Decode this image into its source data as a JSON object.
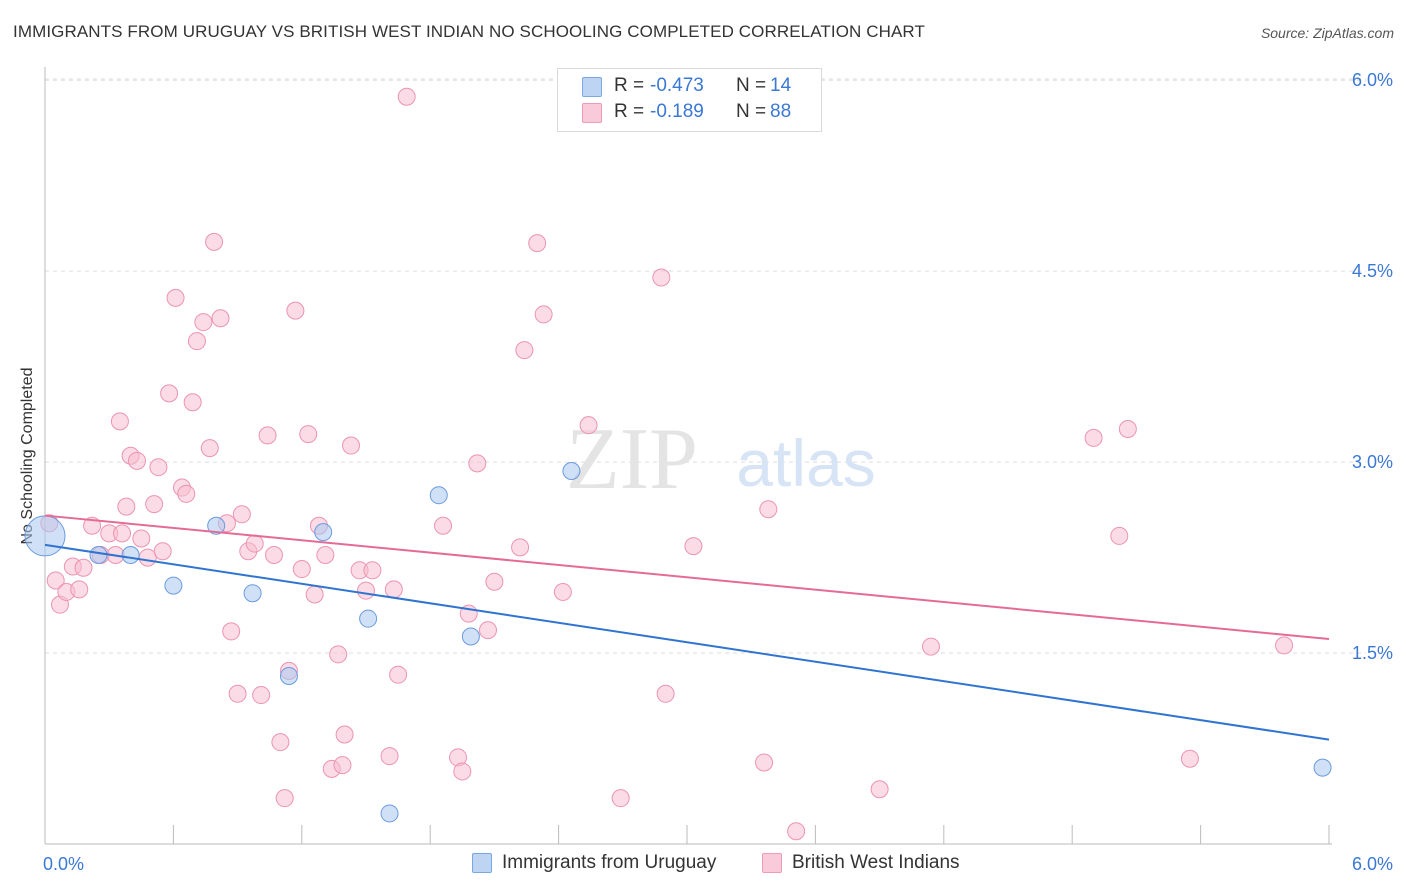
{
  "chart_data": {
    "type": "scatter",
    "title": "IMMIGRANTS FROM URUGUAY VS BRITISH WEST INDIAN NO SCHOOLING COMPLETED CORRELATION CHART",
    "source": "Source: ZipAtlas.com",
    "ylabel": "No Schooling Completed",
    "xlabel": "",
    "xlim": [
      0,
      6
    ],
    "ylim": [
      0,
      6.3
    ],
    "x_tick_labels": [
      "0.0%",
      "6.0%"
    ],
    "y_ticks": [
      {
        "value": 1.5,
        "label": "1.5%"
      },
      {
        "value": 3.0,
        "label": "3.0%"
      },
      {
        "value": 4.5,
        "label": "4.5%"
      },
      {
        "value": 6.0,
        "label": "6.0%"
      }
    ],
    "grid": true,
    "watermark": {
      "zip": "ZIP",
      "atlas": "atlas"
    },
    "legend": [
      {
        "r_label": "R =",
        "r_value": "-0.473",
        "n_label": "N =",
        "n_value": "14"
      },
      {
        "r_label": "R =",
        "r_value": "-0.189",
        "n_label": "N =",
        "n_value": "88"
      }
    ],
    "colors": {
      "series1_fill": "#aac8f0",
      "series1_stroke": "#6a9be0",
      "series1_line": "#2f74d0",
      "series2_fill": "#f7bed0",
      "series2_stroke": "#ec94b1",
      "series2_line": "#e56b97",
      "tick_label": "#3a78d4",
      "grid": "#dddddd"
    },
    "series": [
      {
        "name": "Immigrants from Uruguay",
        "trend": {
          "x": [
            0,
            6
          ],
          "y": [
            2.35,
            0.82
          ]
        },
        "points": [
          {
            "x": 0.0,
            "y": 2.42,
            "big": true
          },
          {
            "x": 0.25,
            "y": 2.27
          },
          {
            "x": 0.4,
            "y": 2.27
          },
          {
            "x": 0.6,
            "y": 2.03
          },
          {
            "x": 0.8,
            "y": 2.5
          },
          {
            "x": 0.97,
            "y": 1.97
          },
          {
            "x": 1.14,
            "y": 1.32
          },
          {
            "x": 1.3,
            "y": 2.45
          },
          {
            "x": 1.51,
            "y": 1.77
          },
          {
            "x": 1.61,
            "y": 0.24
          },
          {
            "x": 1.84,
            "y": 2.74
          },
          {
            "x": 1.99,
            "y": 1.63
          },
          {
            "x": 2.46,
            "y": 2.93
          },
          {
            "x": 5.97,
            "y": 0.6
          }
        ]
      },
      {
        "name": "British West Indians",
        "trend": {
          "x": [
            0,
            6
          ],
          "y": [
            2.58,
            1.61
          ]
        },
        "points": [
          {
            "x": 0.02,
            "y": 2.52
          },
          {
            "x": 0.05,
            "y": 2.07
          },
          {
            "x": 0.07,
            "y": 1.88
          },
          {
            "x": 0.1,
            "y": 1.98
          },
          {
            "x": 0.13,
            "y": 2.18
          },
          {
            "x": 0.16,
            "y": 2.0
          },
          {
            "x": 0.18,
            "y": 2.17
          },
          {
            "x": 0.22,
            "y": 2.5
          },
          {
            "x": 0.26,
            "y": 2.27
          },
          {
            "x": 0.3,
            "y": 2.44
          },
          {
            "x": 0.33,
            "y": 2.27
          },
          {
            "x": 0.36,
            "y": 2.44
          },
          {
            "x": 0.35,
            "y": 3.32
          },
          {
            "x": 0.38,
            "y": 2.65
          },
          {
            "x": 0.4,
            "y": 3.05
          },
          {
            "x": 0.43,
            "y": 3.01
          },
          {
            "x": 0.45,
            "y": 2.4
          },
          {
            "x": 0.48,
            "y": 2.25
          },
          {
            "x": 0.51,
            "y": 2.67
          },
          {
            "x": 0.53,
            "y": 2.96
          },
          {
            "x": 0.55,
            "y": 2.3
          },
          {
            "x": 0.58,
            "y": 3.54
          },
          {
            "x": 0.61,
            "y": 4.29
          },
          {
            "x": 0.64,
            "y": 2.8
          },
          {
            "x": 0.66,
            "y": 2.75
          },
          {
            "x": 0.69,
            "y": 3.47
          },
          {
            "x": 0.71,
            "y": 3.95
          },
          {
            "x": 0.74,
            "y": 4.1
          },
          {
            "x": 0.77,
            "y": 3.11
          },
          {
            "x": 0.79,
            "y": 4.73
          },
          {
            "x": 0.82,
            "y": 4.13
          },
          {
            "x": 0.85,
            "y": 2.52
          },
          {
            "x": 0.87,
            "y": 1.67
          },
          {
            "x": 0.9,
            "y": 1.18
          },
          {
            "x": 0.92,
            "y": 2.59
          },
          {
            "x": 0.95,
            "y": 2.3
          },
          {
            "x": 0.98,
            "y": 2.36
          },
          {
            "x": 1.01,
            "y": 1.17
          },
          {
            "x": 1.04,
            "y": 3.21
          },
          {
            "x": 1.07,
            "y": 2.27
          },
          {
            "x": 1.1,
            "y": 0.8
          },
          {
            "x": 1.12,
            "y": 0.36
          },
          {
            "x": 1.14,
            "y": 1.36
          },
          {
            "x": 1.17,
            "y": 4.19
          },
          {
            "x": 1.2,
            "y": 2.16
          },
          {
            "x": 1.23,
            "y": 3.22
          },
          {
            "x": 1.26,
            "y": 1.96
          },
          {
            "x": 1.28,
            "y": 2.5
          },
          {
            "x": 1.31,
            "y": 2.27
          },
          {
            "x": 1.34,
            "y": 0.59
          },
          {
            "x": 1.37,
            "y": 1.49
          },
          {
            "x": 1.39,
            "y": 0.62
          },
          {
            "x": 1.4,
            "y": 0.86
          },
          {
            "x": 1.43,
            "y": 3.13
          },
          {
            "x": 1.47,
            "y": 2.15
          },
          {
            "x": 1.5,
            "y": 1.99
          },
          {
            "x": 1.53,
            "y": 2.15
          },
          {
            "x": 1.61,
            "y": 0.69
          },
          {
            "x": 1.63,
            "y": 2.0
          },
          {
            "x": 1.65,
            "y": 1.33
          },
          {
            "x": 1.69,
            "y": 5.87
          },
          {
            "x": 1.86,
            "y": 2.5
          },
          {
            "x": 1.93,
            "y": 0.68
          },
          {
            "x": 1.95,
            "y": 0.57
          },
          {
            "x": 1.98,
            "y": 1.81
          },
          {
            "x": 2.02,
            "y": 2.99
          },
          {
            "x": 2.07,
            "y": 1.68
          },
          {
            "x": 2.1,
            "y": 2.06
          },
          {
            "x": 2.22,
            "y": 2.33
          },
          {
            "x": 2.24,
            "y": 3.88
          },
          {
            "x": 2.3,
            "y": 4.72
          },
          {
            "x": 2.33,
            "y": 4.16
          },
          {
            "x": 2.42,
            "y": 1.98
          },
          {
            "x": 2.54,
            "y": 3.29
          },
          {
            "x": 2.69,
            "y": 0.36
          },
          {
            "x": 2.88,
            "y": 4.45
          },
          {
            "x": 2.9,
            "y": 1.18
          },
          {
            "x": 3.03,
            "y": 2.34
          },
          {
            "x": 3.36,
            "y": 0.64
          },
          {
            "x": 3.38,
            "y": 2.63
          },
          {
            "x": 3.51,
            "y": 0.1
          },
          {
            "x": 3.9,
            "y": 0.43
          },
          {
            "x": 4.14,
            "y": 1.55
          },
          {
            "x": 4.9,
            "y": 3.19
          },
          {
            "x": 5.02,
            "y": 2.42
          },
          {
            "x": 5.06,
            "y": 3.26
          },
          {
            "x": 5.35,
            "y": 0.67
          },
          {
            "x": 5.79,
            "y": 1.56
          }
        ]
      }
    ]
  }
}
